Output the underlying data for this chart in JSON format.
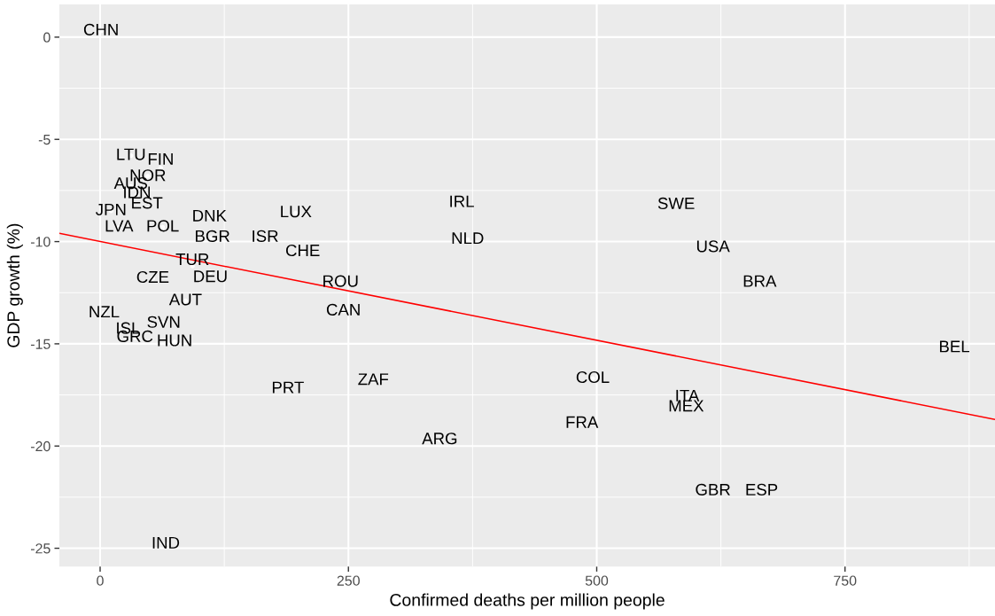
{
  "chart_data": {
    "type": "scatter",
    "xlabel": "Confirmed deaths per million people",
    "ylabel": "GDP growth (%)",
    "marker": "circle",
    "grid": true,
    "xlim": [
      -41,
      901
    ],
    "ylim": [
      -25.9,
      1.6
    ],
    "xticks": [
      0,
      250,
      500,
      750
    ],
    "yticks": [
      -25,
      -20,
      -15,
      -10,
      -5,
      0
    ],
    "series": [
      {
        "color": "#ffffff",
        "x": [
          1,
          31,
          61,
          48,
          31,
          37,
          47,
          11,
          19,
          63,
          110,
          113,
          197,
          166,
          204,
          93,
          111,
          53,
          242,
          86,
          4,
          245,
          28,
          35,
          64,
          75,
          189,
          66,
          364,
          370,
          275,
          342,
          496,
          485,
          580,
          617,
          664,
          860,
          591,
          590,
          617,
          666
        ],
        "values": [
          0.3,
          -5.8,
          -6.4,
          -6.8,
          -7.3,
          -7.7,
          -7.7,
          -8.5,
          -9.3,
          -9.3,
          -8.8,
          -9.8,
          -8.6,
          -9.8,
          -10.5,
          -11.2,
          -11.5,
          -11.8,
          -12.0,
          -12.9,
          -13.5,
          -13.4,
          -14.3,
          -14.7,
          -14.0,
          -14.9,
          -17.2,
          -24.8,
          -8.1,
          -9.9,
          -16.8,
          -19.7,
          -16.7,
          -18.9,
          -8.2,
          -10.3,
          -12.0,
          -15.2,
          -17.6,
          -18.1,
          -22.2,
          -22.2
        ],
        "value_labels": [
          "CHN",
          "LTU",
          "FIN",
          "NOR",
          "AUS",
          "IDN",
          "EST",
          "JPN",
          "LVA",
          "POL",
          "DNK",
          "BGR",
          "LUX",
          "ISR",
          "CHE",
          "TUR",
          "DEU",
          "CZE",
          "ROU",
          "AUT",
          "NZL",
          "CAN",
          "ISL",
          "GRC",
          "SVN",
          "HUN",
          "PRT",
          "IND",
          "IRL",
          "NLD",
          "ZAF",
          "ARG",
          "COL",
          "FRA",
          "SWE",
          "USA",
          "BRA",
          "BEL",
          "ITA",
          "MEX",
          "GBR",
          "ESP"
        ]
      },
      {
        "type": "line",
        "marker": "none",
        "color": "#ff0000",
        "x": [
          -41,
          901
        ],
        "values": [
          -9.6,
          -18.7
        ]
      }
    ]
  }
}
